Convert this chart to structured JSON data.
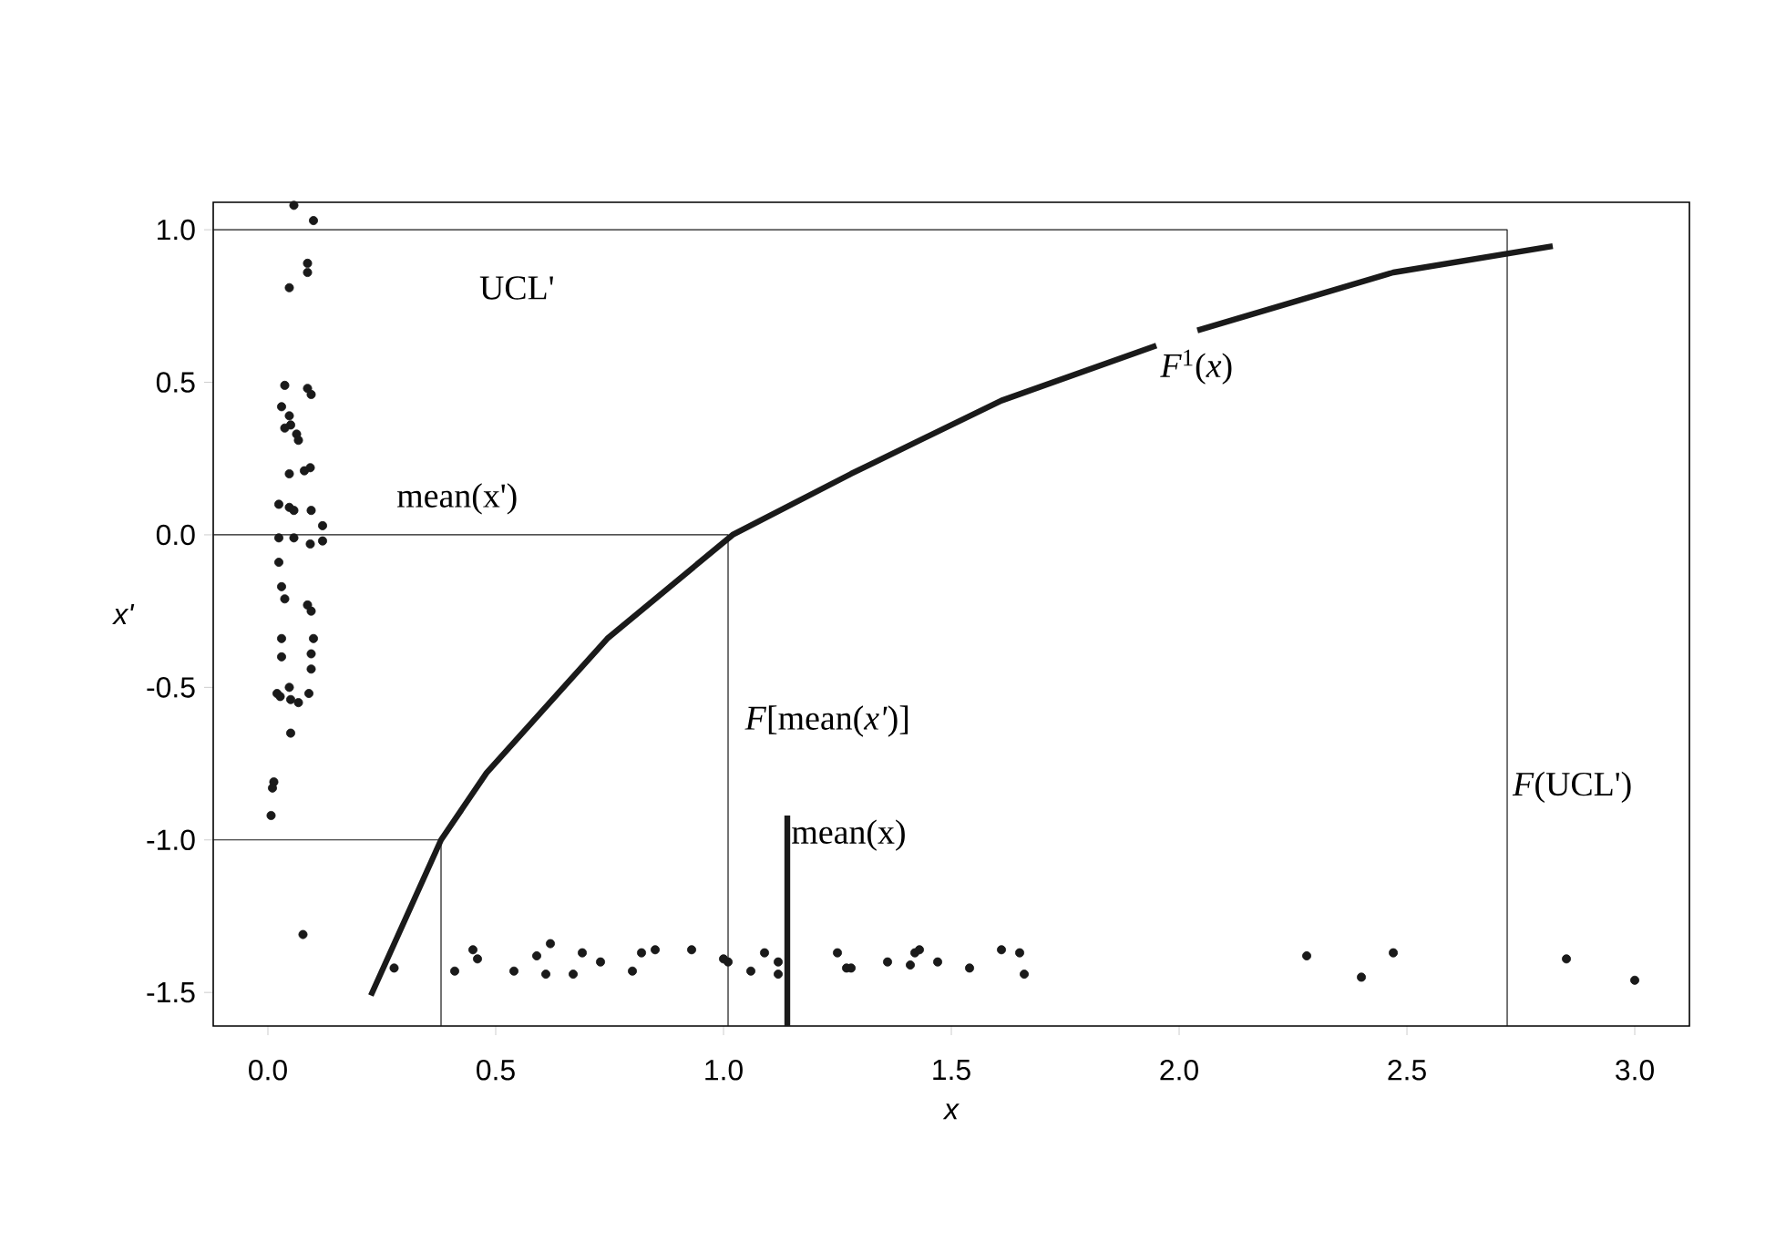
{
  "chart_data": {
    "type": "scatter",
    "xlabel": "x",
    "ylabel": "x'",
    "xlim": [
      -0.12,
      3.12
    ],
    "ylim": [
      -1.61,
      1.09
    ],
    "xticks": [
      {
        "value": 0,
        "label": "0.0"
      },
      {
        "value": 0.5,
        "label": "0.5"
      },
      {
        "value": 1,
        "label": "1.0"
      },
      {
        "value": 1.5,
        "label": "1.5"
      },
      {
        "value": 2,
        "label": "2.0"
      },
      {
        "value": 2.5,
        "label": "2.5"
      },
      {
        "value": 3,
        "label": "3.0"
      }
    ],
    "yticks": [
      {
        "value": -1.5,
        "label": "-1.5"
      },
      {
        "value": -1,
        "label": "-1.0"
      },
      {
        "value": -0.5,
        "label": "-0.5"
      },
      {
        "value": 0,
        "label": "0.0"
      },
      {
        "value": 0.5,
        "label": "0.5"
      },
      {
        "value": 1,
        "label": "1.0"
      }
    ],
    "grid": false,
    "series": [
      {
        "marker": "circle",
        "color": "#1a1a1a",
        "x": [
          0.057,
          0.1,
          0.087,
          0.087,
          0.047,
          0.037,
          0.087,
          0.095,
          0.03,
          0.047,
          0.05,
          0.037,
          0.063,
          0.067,
          0.093,
          0.08,
          0.047,
          0.024,
          0.047,
          0.057,
          0.095,
          0.12,
          0.024,
          0.057,
          0.093,
          0.12,
          0.024,
          0.03,
          0.037,
          0.087,
          0.095,
          0.03,
          0.1,
          0.03,
          0.095,
          0.095,
          0.02,
          0.047,
          0.05,
          0.09,
          0.027,
          0.067,
          0.05,
          0.013,
          0.01,
          0.007,
          0.077,
          0.277,
          0.41,
          0.45,
          0.46,
          0.54,
          0.59,
          0.62,
          0.61,
          0.67,
          0.69,
          0.73,
          0.8,
          0.82,
          0.85,
          0.93,
          1.0,
          1.01,
          1.06,
          1.09,
          1.12,
          1.12,
          1.25,
          1.27,
          1.28,
          1.36,
          1.41,
          1.42,
          1.43,
          1.47,
          1.54,
          1.61,
          1.65,
          1.66,
          2.28,
          2.4,
          2.47,
          2.85,
          3.0
        ],
        "values": [
          1.08,
          1.03,
          0.89,
          0.86,
          0.81,
          0.49,
          0.48,
          0.46,
          0.42,
          0.39,
          0.36,
          0.35,
          0.33,
          0.31,
          0.22,
          0.21,
          0.2,
          0.1,
          0.09,
          0.08,
          0.08,
          0.03,
          -0.01,
          -0.01,
          -0.03,
          -0.02,
          -0.09,
          -0.17,
          -0.21,
          -0.23,
          -0.25,
          -0.34,
          -0.34,
          -0.4,
          -0.39,
          -0.44,
          -0.52,
          -0.5,
          -0.54,
          -0.52,
          -0.53,
          -0.55,
          -0.65,
          -0.81,
          -0.83,
          -0.92,
          -1.31,
          -1.42,
          -1.43,
          -1.36,
          -1.39,
          -1.43,
          -1.38,
          -1.34,
          -1.44,
          -1.44,
          -1.37,
          -1.4,
          -1.43,
          -1.37,
          -1.36,
          -1.36,
          -1.39,
          -1.4,
          -1.43,
          -1.37,
          -1.4,
          -1.44,
          -1.37,
          -1.42,
          -1.42,
          -1.4,
          -1.41,
          -1.37,
          -1.36,
          -1.4,
          -1.42,
          -1.36,
          -1.37,
          -1.44,
          -1.38,
          -1.45,
          -1.37,
          -1.39,
          -1.46
        ]
      },
      {
        "type": "line",
        "name": "*F*$^{1}$(*x*)",
        "marker": "none",
        "line_style": "solid",
        "color": "#1a1a1a",
        "x": [
          0.226,
          0.38,
          0.48,
          0.745,
          1.02,
          1.28,
          1.61,
          1.95,
          2.0,
          2.04,
          2.47,
          2.82
        ],
        "values": [
          -1.51,
          -1.0,
          -0.78,
          -0.34,
          0.0,
          0.2,
          0.44,
          0.62,
          null,
          0.67,
          0.86,
          0.946
        ]
      },
      {
        "type": "line",
        "marker": "none",
        "line_style": "solid",
        "color": "#1a1a1a",
        "x": [
          -0.12,
          2.72,
          2.72
        ],
        "values": [
          1.0,
          1.0,
          -1.61
        ]
      },
      {
        "type": "line",
        "marker": "none",
        "line_style": "solid",
        "color": "#1a1a1a",
        "x": [
          -0.12,
          1.01,
          1.01
        ],
        "values": [
          0.0,
          0.0,
          -1.61
        ]
      },
      {
        "type": "line",
        "marker": "none",
        "line_style": "solid",
        "color": "#1a1a1a",
        "x": [
          -0.12,
          0.38,
          0.38
        ],
        "values": [
          -1.0,
          -1.0,
          -1.61
        ]
      },
      {
        "type": "line",
        "name": "mean(x)",
        "marker": "none",
        "line_style": "solid",
        "color": "#1a1a1a",
        "x": [
          1.14,
          1.14
        ],
        "values": [
          -1.61,
          -0.92
        ]
      }
    ],
    "annotations": [
      "UCL'",
      "mean(x')",
      "*F*[mean(*x'*)]",
      "*F*(UCL')"
    ]
  }
}
